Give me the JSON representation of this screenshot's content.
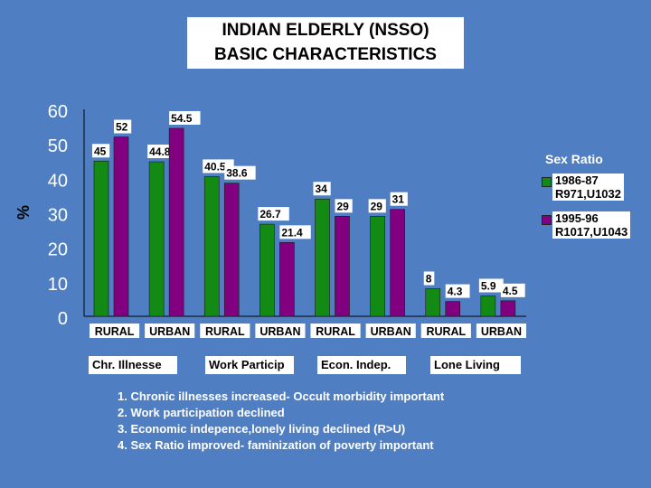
{
  "title": {
    "line1": "INDIAN ELDERLY (NSSO)",
    "line2": "BASIC CHARACTERISTICS"
  },
  "chart_data": {
    "type": "bar",
    "ylabel": "%",
    "ylim": [
      0,
      60
    ],
    "yticks": [
      "0",
      "10",
      "20",
      "30",
      "40",
      "50",
      "60"
    ],
    "categories": [
      "RURAL",
      "URBAN",
      "RURAL",
      "URBAN",
      "RURAL",
      "URBAN",
      "RURAL",
      "URBAN"
    ],
    "series": [
      {
        "name": "1986-87",
        "color": "#138a13",
        "values": [
          45,
          44.8,
          40.5,
          26.7,
          34,
          29,
          8,
          5.9
        ]
      },
      {
        "name": "1995-96",
        "color": "#800080",
        "values": [
          52,
          54.5,
          38.6,
          21.4,
          29,
          31,
          4.3,
          4.5
        ]
      }
    ],
    "value_labels": {
      "series0": [
        "45",
        "44.8",
        "40.5",
        "26.7",
        "34",
        "29",
        "8",
        "5.9"
      ],
      "series1": [
        "52",
        "54.5",
        "38.6",
        "21.4",
        "29",
        "31",
        "4.3",
        "4.5"
      ]
    },
    "groups": [
      "Chr. Illnesse",
      "Work Particip",
      "Econ. Indep.",
      "Lone Living"
    ],
    "legend": {
      "title": "Sex Ratio",
      "items": [
        {
          "label1": "1986-87",
          "label2": "R971,U1032",
          "color": "#138a13"
        },
        {
          "label1": "1995-96",
          "label2": "R1017,U1043",
          "color": "#800080"
        }
      ]
    }
  },
  "notes": [
    "1. Chronic illnesses increased- Occult morbidity important",
    "2. Work participation declined",
    "3. Economic indepence,lonely living declined (R>U)",
    "4. Sex Ratio improved- faminization of poverty important"
  ]
}
